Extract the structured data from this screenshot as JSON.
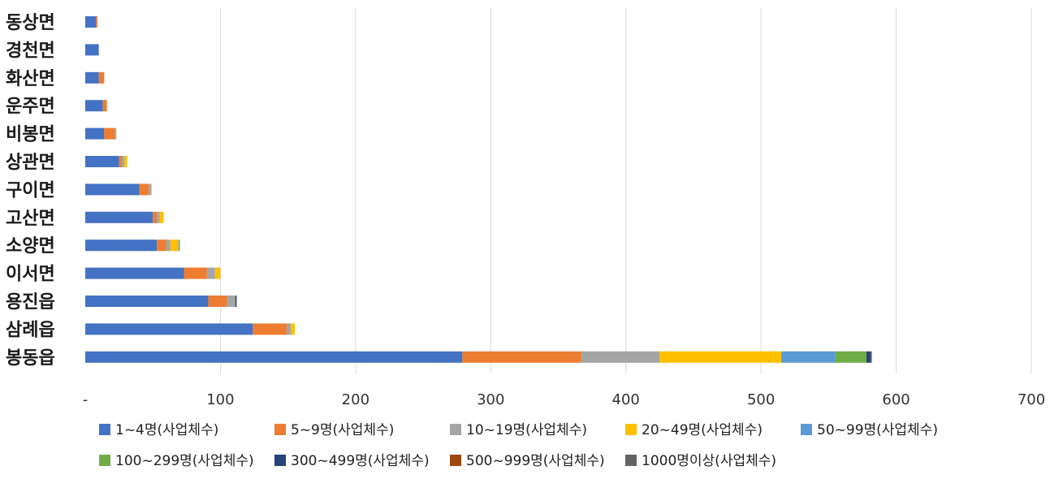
{
  "chart_data": {
    "type": "bar",
    "orientation": "horizontal",
    "stacked": true,
    "title": "",
    "xlabel": "",
    "ylabel": "",
    "xlim": [
      0,
      700
    ],
    "x_ticks": [
      {
        "value": 0,
        "label": "-"
      },
      {
        "value": 100,
        "label": "100"
      },
      {
        "value": 200,
        "label": "200"
      },
      {
        "value": 300,
        "label": "300"
      },
      {
        "value": 400,
        "label": "400"
      },
      {
        "value": 500,
        "label": "500"
      },
      {
        "value": 600,
        "label": "600"
      },
      {
        "value": 700,
        "label": "700"
      }
    ],
    "grid": "vertical",
    "legend_position": "bottom",
    "categories": [
      "동상면",
      "경천면",
      "화산면",
      "운주면",
      "비봉면",
      "상관면",
      "구이면",
      "고산면",
      "소양면",
      "이서면",
      "용진읍",
      "삼례읍",
      "봉동읍"
    ],
    "series": [
      {
        "name": "1~4명(사업체수)",
        "color": "#4472C4",
        "values": [
          8,
          10,
          10,
          13,
          14,
          25,
          40,
          50,
          53,
          73,
          91,
          124,
          279
        ]
      },
      {
        "name": "5~9명(사업체수)",
        "color": "#ED7D31",
        "values": [
          1,
          0,
          4,
          3,
          8,
          2,
          7,
          3,
          7,
          17,
          14,
          25,
          88
        ]
      },
      {
        "name": "10~19명(사업체수)",
        "color": "#A5A5A5",
        "values": [
          0,
          0,
          0,
          0,
          1,
          2,
          2,
          2,
          3,
          6,
          6,
          3,
          58
        ]
      },
      {
        "name": "20~49명(사업체수)",
        "color": "#FFC000",
        "values": [
          0,
          0,
          0,
          0,
          0,
          2,
          0,
          3,
          6,
          4,
          0,
          3,
          90
        ]
      },
      {
        "name": "50~99명(사업체수)",
        "color": "#5B9BD5",
        "values": [
          0,
          0,
          0,
          0,
          0,
          0,
          0,
          0,
          1,
          0,
          0,
          0,
          40
        ]
      },
      {
        "name": "100~299명(사업체수)",
        "color": "#70AD47",
        "values": [
          0,
          0,
          0,
          0,
          0,
          0,
          0,
          0,
          0,
          0,
          0,
          0,
          23
        ]
      },
      {
        "name": "300~499명(사업체수)",
        "color": "#264478",
        "values": [
          0,
          0,
          0,
          0,
          0,
          0,
          0,
          0,
          0,
          0,
          1,
          0,
          3
        ]
      },
      {
        "name": "500~999명(사업체수)",
        "color": "#9E480E",
        "values": [
          0,
          0,
          0,
          0,
          0,
          0,
          0,
          0,
          0,
          0,
          0,
          0,
          0
        ]
      },
      {
        "name": "1000명이상(사업체수)",
        "color": "#636363",
        "values": [
          0,
          0,
          0,
          0,
          0,
          0,
          0,
          0,
          0,
          0,
          0,
          0,
          1
        ]
      }
    ]
  }
}
